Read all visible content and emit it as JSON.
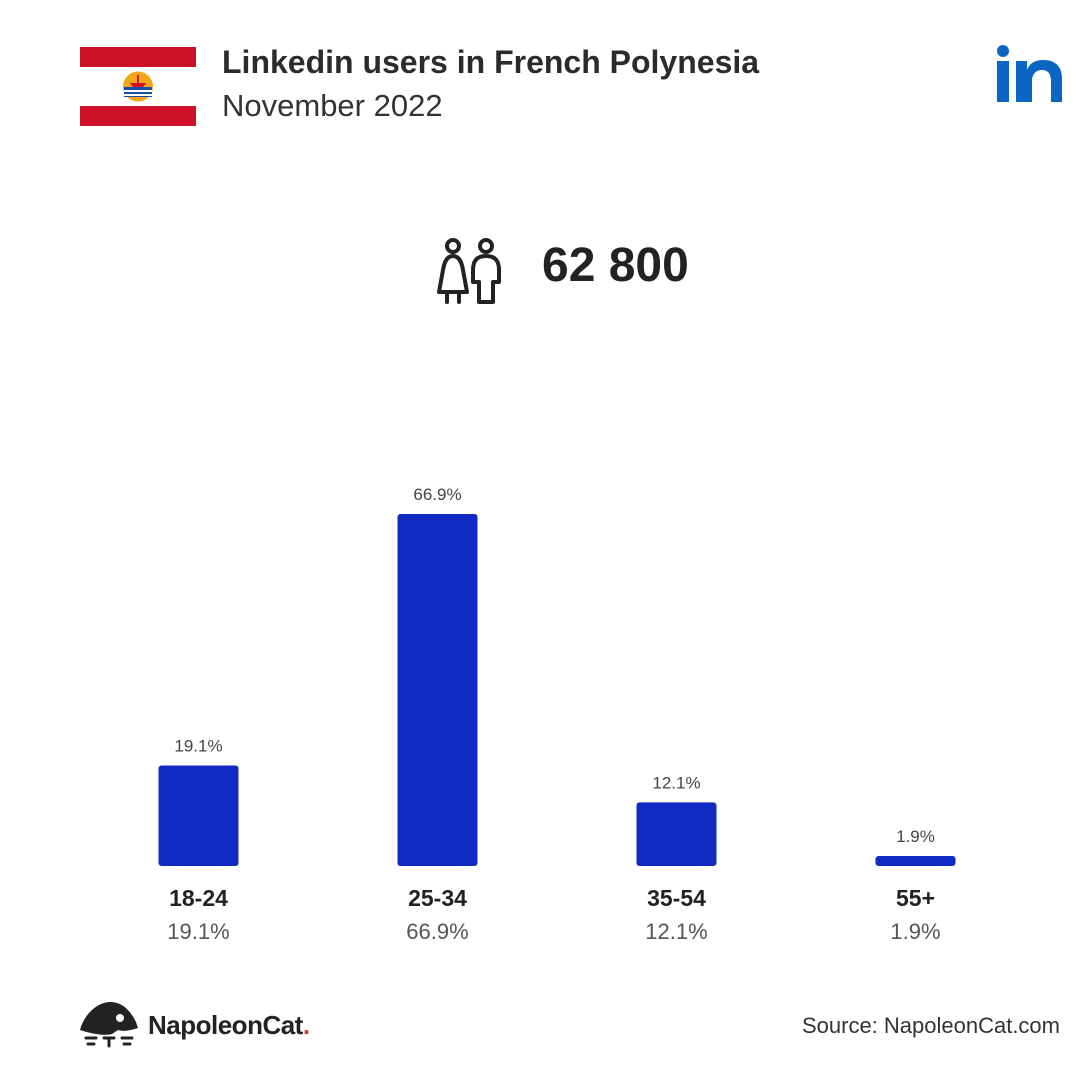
{
  "header": {
    "title": "Linkedin users in French Polynesia",
    "subtitle": "November 2022"
  },
  "summary": {
    "total_users": "62 800"
  },
  "footer": {
    "brand": "NapoleonCat",
    "brand_dot": ".",
    "source": "Source: NapoleonCat.com"
  },
  "icons": {
    "flag": "french-polynesia-flag-icon",
    "linkedin": "linkedin-logo-icon",
    "users": "users-icon",
    "brand": "napoleoncat-logo-icon"
  },
  "colors": {
    "bar": "#0f2bc4",
    "flag_red": "#ce1126",
    "linkedin_blue": "#0a66c2",
    "brand_dot": "#e0362c"
  },
  "chart_data": {
    "type": "bar",
    "categories": [
      "18-24",
      "25-34",
      "35-54",
      "55+"
    ],
    "values": [
      19.1,
      66.9,
      12.1,
      1.9
    ],
    "value_labels": [
      "19.1%",
      "66.9%",
      "12.1%",
      "1.9%"
    ],
    "ylim": [
      0,
      66.9
    ]
  }
}
